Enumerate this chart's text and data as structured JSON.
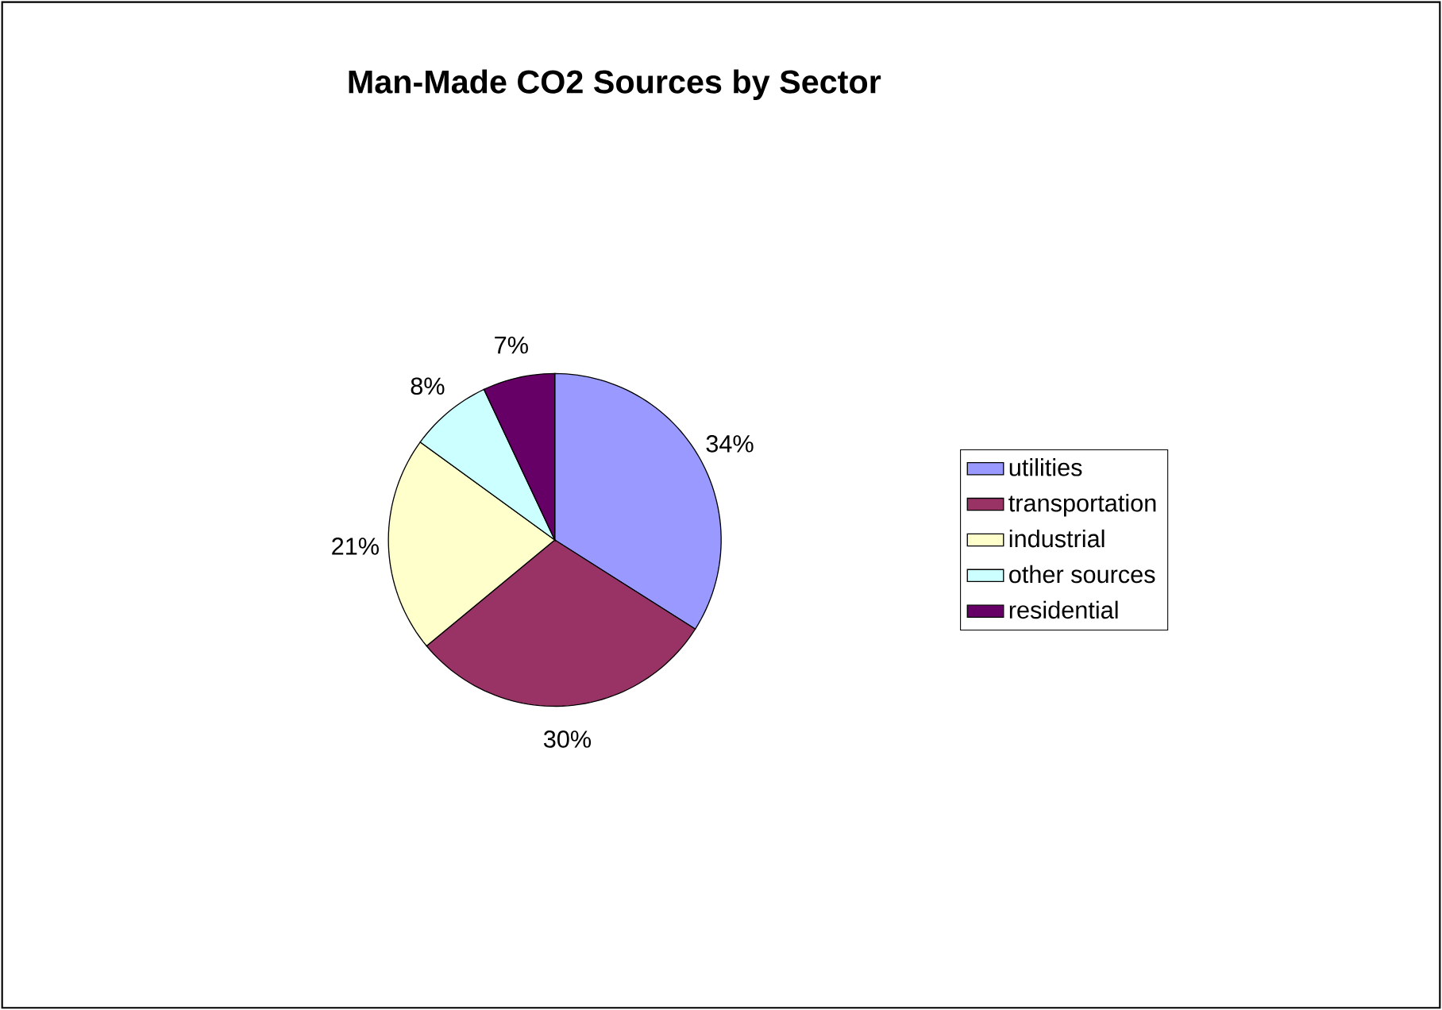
{
  "chart_data": {
    "type": "pie",
    "title": "Man-Made CO2 Sources by Sector",
    "categories": [
      "utilities",
      "transportation",
      "industrial",
      "other sources",
      "residential"
    ],
    "values": [
      34,
      30,
      21,
      8,
      7
    ],
    "colors": [
      "#9999ff",
      "#993366",
      "#ffffcc",
      "#ccffff",
      "#660066"
    ],
    "value_labels": [
      "34%",
      "30%",
      "21%",
      "8%",
      "7%"
    ],
    "legend": "right"
  }
}
